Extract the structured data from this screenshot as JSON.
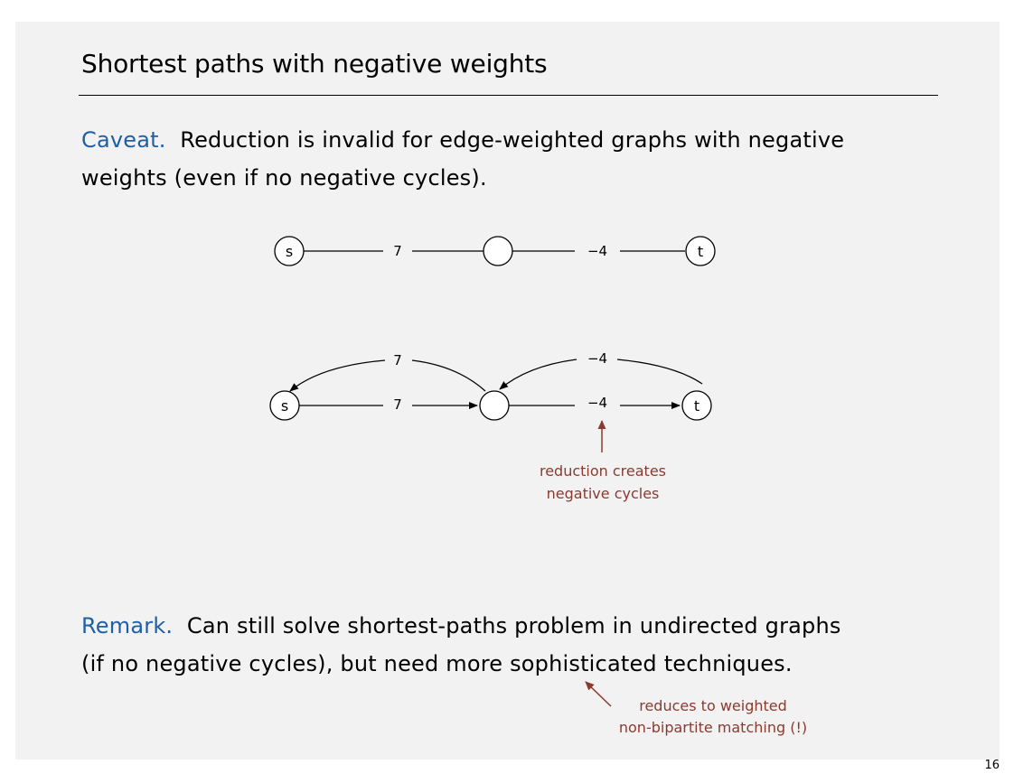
{
  "title": "Shortest paths with negative weights",
  "caveat": {
    "keyword": "Caveat.",
    "line1": "Reduction is invalid for edge-weighted graphs with negative",
    "line2": "weights (even if no negative cycles)."
  },
  "undirected_graph": {
    "source_label": "s",
    "target_label": "t",
    "edge1_weight": "7",
    "edge2_weight": "−4"
  },
  "digraph": {
    "source_label": "s",
    "target_label": "t",
    "back_edge1_weight": "7",
    "back_edge2_weight": "−4",
    "fwd_edge1_weight": "7",
    "fwd_edge2_weight": "−4"
  },
  "annotation1": {
    "line1": "reduction creates",
    "line2": "negative cycles"
  },
  "remark": {
    "keyword": "Remark.",
    "line1": "Can still solve shortest-paths problem in undirected graphs",
    "line2": "(if no negative cycles), but need more sophisticated techniques."
  },
  "annotation2": {
    "line1": "reduces to weighted",
    "line2": "non-bipartite matching (!)"
  },
  "page_number": "16",
  "colors": {
    "slide_bg": "#f2f2f2",
    "keyword": "#1f5fa8",
    "annotation": "#8b3a2f",
    "ink": "#000000"
  }
}
